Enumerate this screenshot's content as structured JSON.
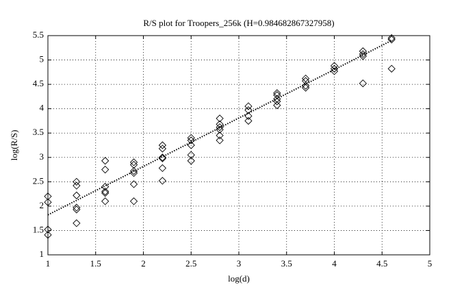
{
  "chart_data": {
    "type": "scatter",
    "title": "R/S plot for Troopers_256k (H=0.984682867327958)",
    "x_label": "log(d)",
    "y_label": "log(R/S)",
    "xlim": [
      1,
      5
    ],
    "xticks": [
      1,
      1.5,
      2,
      2.5,
      3,
      3.5,
      4,
      4.5,
      5
    ],
    "ylim": [
      1,
      5.5
    ],
    "yticks": [
      1,
      1.5,
      2,
      2.5,
      3,
      3.5,
      4,
      4.5,
      5,
      5.5
    ],
    "grid": true,
    "series": [
      {
        "color": "#000000",
        "x": [
          1,
          1,
          1,
          1,
          1.3,
          1.3,
          1.3,
          1.3,
          1.3,
          1.3,
          1.6,
          1.6,
          1.6,
          1.6,
          1.6,
          1.6,
          1.9,
          1.9,
          1.9,
          1.9,
          1.9,
          1.9,
          2.2,
          2.2,
          2.2,
          2.2,
          2.2,
          2.2,
          2.5,
          2.5,
          2.5,
          2.5,
          2.5,
          2.8,
          2.8,
          2.8,
          2.8,
          2.8,
          2.8,
          3.1,
          3.1,
          3.1,
          3.1,
          3.4,
          3.4,
          3.4,
          3.4,
          3.4,
          3.7,
          3.7,
          3.7,
          3.7,
          4,
          4,
          4,
          4.3,
          4.3,
          4.3,
          4.3,
          4.6,
          4.6,
          4.6
        ],
        "values": [
          2.2,
          2.08,
          1.52,
          1.41,
          2.5,
          2.42,
          2.22,
          1.97,
          1.93,
          1.65,
          2.93,
          2.75,
          2.4,
          2.3,
          2.27,
          2.1,
          2.9,
          2.85,
          2.72,
          2.68,
          2.45,
          2.1,
          3.25,
          3.18,
          3.0,
          2.98,
          2.78,
          2.52,
          3.4,
          3.35,
          3.25,
          3.05,
          2.93,
          3.8,
          3.68,
          3.62,
          3.57,
          3.45,
          3.35,
          4.05,
          3.97,
          3.85,
          3.75,
          4.32,
          4.28,
          4.2,
          4.15,
          4.07,
          4.62,
          4.57,
          4.47,
          4.43,
          4.88,
          4.82,
          4.77,
          5.18,
          5.12,
          5.08,
          4.52,
          5.45,
          5.42,
          4.82
        ]
      }
    ],
    "fit_line": {
      "color": "#000000",
      "x": [
        1,
        4.6
      ],
      "values": [
        1.82,
        5.4
      ]
    }
  }
}
